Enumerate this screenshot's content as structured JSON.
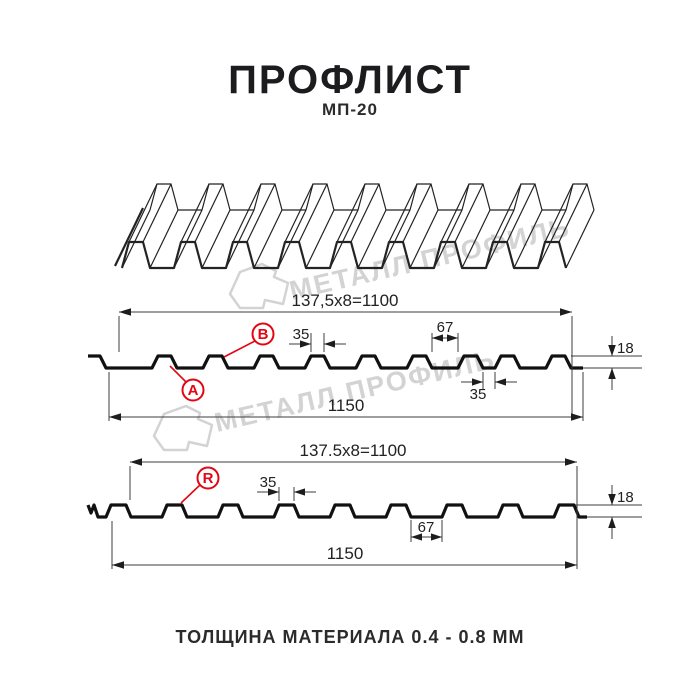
{
  "header": {
    "title": "ПРОФЛИСТ",
    "subtitle": "МП-20"
  },
  "watermark": {
    "brand": "МЕТАЛЛ ПРОФИЛЬ"
  },
  "section1": {
    "working_width": "137,5x8=1100",
    "overall_width": "1150",
    "rib_top_width": "35",
    "valley_width": "67",
    "overlap_gap": "35",
    "height": "18",
    "label_a": "A",
    "label_b": "B"
  },
  "section2": {
    "working_width": "137.5x8=1100",
    "overall_width": "1150",
    "rib_top_width": "35",
    "valley_width": "67",
    "height": "18",
    "label_r": "R"
  },
  "footer": {
    "thickness": "ТОЛЩИНА МАТЕРИАЛА 0.4 - 0.8 ММ"
  },
  "colors": {
    "accent_red": "#e30613",
    "line": "#111111",
    "watermark": "#d3d3d3"
  }
}
